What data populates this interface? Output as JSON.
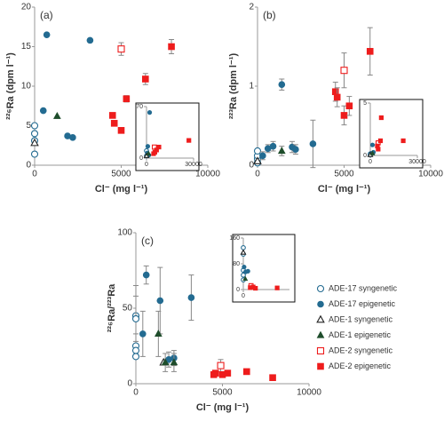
{
  "chart_data": [
    {
      "type": "scatter",
      "panel_label": "(a)",
      "x_label": "Cl⁻ (mg l⁻¹)",
      "y_label": "²²⁶Ra (dpm l⁻¹)",
      "xlim": [
        0,
        10000
      ],
      "xticks": [
        0,
        5000,
        10000
      ],
      "ylim": [
        0,
        20
      ],
      "yticks": [
        0,
        5,
        10,
        15,
        20
      ],
      "series": [
        {
          "marker": "circle-open",
          "color": "#236b91",
          "x": [
            0,
            0,
            0,
            0
          ],
          "values": [
            1.4,
            3.1,
            4.0,
            5.0
          ]
        },
        {
          "marker": "circle",
          "color": "#236b91",
          "x": [
            500,
            700,
            1900,
            2200,
            3200
          ],
          "values": [
            6.9,
            16.5,
            3.7,
            3.5,
            15.8
          ]
        },
        {
          "marker": "triangle-open",
          "color": "#222222",
          "x": [
            0
          ],
          "values": [
            2.8
          ]
        },
        {
          "marker": "triangle",
          "color": "#1e4d2b",
          "x": [
            1300
          ],
          "values": [
            6.2
          ]
        },
        {
          "marker": "square-open",
          "color": "#ee1c1c",
          "x": [
            5000
          ],
          "values": [
            14.7
          ],
          "errors": [
            0.8
          ]
        },
        {
          "marker": "square",
          "color": "#ee1c1c",
          "x": [
            4500,
            4600,
            5000,
            5300,
            6400,
            7900
          ],
          "values": [
            6.3,
            5.3,
            4.4,
            8.4,
            10.9,
            15.0
          ],
          "errors": [
            null,
            null,
            null,
            0.4,
            0.7,
            0.9
          ]
        }
      ]
    },
    {
      "type": "scatter",
      "inset": true,
      "xlim": [
        0,
        30000
      ],
      "xticks": [
        0,
        30000
      ],
      "ylim": [
        0,
        70
      ],
      "yticks": [
        0,
        70
      ],
      "series": [
        {
          "marker": "circle-open",
          "color": "#236b91",
          "x": [
            0,
            0
          ],
          "values": [
            3,
            10
          ]
        },
        {
          "marker": "circle",
          "color": "#236b91",
          "x": [
            500,
            800,
            1500,
            2000
          ],
          "values": [
            7,
            16,
            4,
            62
          ]
        },
        {
          "marker": "triangle-open",
          "color": "#222222",
          "x": [
            0
          ],
          "values": [
            3
          ]
        },
        {
          "marker": "triangle",
          "color": "#1e4d2b",
          "x": [
            1300
          ],
          "values": [
            6
          ]
        },
        {
          "marker": "square-open",
          "color": "#ee1c1c",
          "x": [
            5000
          ],
          "values": [
            15
          ]
        },
        {
          "marker": "square",
          "color": "#ee1c1c",
          "x": [
            4500,
            5300,
            6400,
            7900,
            27000
          ],
          "values": [
            6,
            8,
            11,
            15,
            24
          ]
        }
      ]
    },
    {
      "type": "scatter",
      "panel_label": "(b)",
      "x_label": "Cl⁻ (mg l⁻¹)",
      "y_label": "²²³Ra (dpm l⁻¹)",
      "xlim": [
        0,
        10000
      ],
      "xticks": [
        0,
        5000,
        10000
      ],
      "ylim": [
        0,
        2
      ],
      "yticks": [
        0,
        1,
        2
      ],
      "series": [
        {
          "marker": "circle-open",
          "color": "#236b91",
          "x": [
            0,
            0,
            0,
            0
          ],
          "values": [
            0.03,
            0.08,
            0.12,
            0.18
          ]
        },
        {
          "marker": "circle",
          "color": "#236b91",
          "x": [
            300,
            600,
            900,
            1400,
            2000,
            2200,
            3200
          ],
          "values": [
            0.12,
            0.21,
            0.24,
            1.02,
            0.23,
            0.2,
            0.27
          ],
          "errors": [
            0.05,
            0.05,
            0.06,
            0.07,
            0.07,
            0.06,
            0.3
          ]
        },
        {
          "marker": "triangle-open",
          "color": "#222222",
          "x": [
            0
          ],
          "values": [
            0.05
          ]
        },
        {
          "marker": "triangle",
          "color": "#1e4d2b",
          "x": [
            1400
          ],
          "values": [
            0.18
          ],
          "errors": [
            0.06
          ]
        },
        {
          "marker": "square-open",
          "color": "#ee1c1c",
          "x": [
            5000
          ],
          "values": [
            1.2
          ],
          "errors": [
            0.22
          ]
        },
        {
          "marker": "square",
          "color": "#ee1c1c",
          "x": [
            4500,
            4600,
            5000,
            5300,
            6500
          ],
          "values": [
            0.93,
            0.86,
            0.63,
            0.75,
            1.44
          ],
          "errors": [
            0.12,
            0.12,
            0.12,
            0.12,
            0.3
          ]
        }
      ]
    },
    {
      "type": "scatter",
      "inset": true,
      "xlim": [
        0,
        30000
      ],
      "xticks": [
        0,
        30000
      ],
      "ylim": [
        0,
        5
      ],
      "yticks": [
        0,
        5
      ],
      "series": [
        {
          "marker": "circle-open",
          "color": "#236b91",
          "x": [
            0,
            0
          ],
          "values": [
            0.05,
            0.15
          ]
        },
        {
          "marker": "circle",
          "color": "#236b91",
          "x": [
            500,
            1400,
            2000
          ],
          "values": [
            0.2,
            1.0,
            0.3
          ]
        },
        {
          "marker": "triangle-open",
          "color": "#222222",
          "x": [
            0
          ],
          "values": [
            0.05
          ]
        },
        {
          "marker": "triangle",
          "color": "#1e4d2b",
          "x": [
            1400
          ],
          "values": [
            0.2
          ]
        },
        {
          "marker": "square-open",
          "color": "#ee1c1c",
          "x": [
            5000
          ],
          "values": [
            1.2
          ]
        },
        {
          "marker": "square",
          "color": "#ee1c1c",
          "x": [
            4500,
            5000,
            6500,
            7000,
            21000
          ],
          "values": [
            0.9,
            0.6,
            1.4,
            3.6,
            1.4
          ]
        }
      ]
    },
    {
      "type": "scatter",
      "panel_label": "(c)",
      "x_label": "Cl⁻ (mg l⁻¹)",
      "y_label": "²²⁶Ra/²²³Ra",
      "xlim": [
        0,
        10000
      ],
      "xticks": [
        0,
        5000,
        10000
      ],
      "ylim": [
        0,
        100
      ],
      "yticks": [
        0,
        50,
        100
      ],
      "series": [
        {
          "name": "ADE-17 syngenetic",
          "marker": "circle-open",
          "color": "#236b91",
          "x": [
            0,
            0,
            0,
            0,
            0
          ],
          "values": [
            45,
            43,
            25,
            22,
            18
          ],
          "errors": [
            20,
            15,
            8,
            null,
            null
          ]
        },
        {
          "name": "ADE-17 epigenetic",
          "marker": "circle",
          "color": "#236b91",
          "x": [
            400,
            600,
            1400,
            1900,
            2200,
            3200
          ],
          "values": [
            33,
            72,
            55,
            16,
            17,
            57
          ],
          "errors": [
            15,
            6,
            22,
            5,
            5,
            15
          ]
        },
        {
          "name": "ADE-1 syngenetic",
          "marker": "triangle-open",
          "color": "#222222",
          "x": [
            1600
          ],
          "values": [
            14
          ]
        },
        {
          "name": "ADE-1 epigenetic",
          "marker": "triangle",
          "color": "#1e4d2b",
          "x": [
            1300,
            1700,
            2200
          ],
          "values": [
            33,
            14,
            14
          ],
          "errors": [
            15,
            6,
            6
          ]
        },
        {
          "name": "ADE-2 syngenetic",
          "marker": "square-open",
          "color": "#ee1c1c",
          "x": [
            4900
          ],
          "values": [
            12
          ],
          "errors": [
            4
          ]
        },
        {
          "name": "ADE-2 epigenetic",
          "marker": "square",
          "color": "#ee1c1c",
          "x": [
            4500,
            4600,
            5000,
            5300,
            6400,
            7900
          ],
          "values": [
            6,
            7,
            6,
            7,
            8,
            4
          ]
        }
      ]
    },
    {
      "type": "scatter",
      "inset": true,
      "xlim": [
        0,
        30000
      ],
      "xticks": [
        0
      ],
      "ylim": [
        0,
        160
      ],
      "yticks": [
        0,
        80,
        160
      ],
      "series": [
        {
          "marker": "circle-open",
          "color": "#236b91",
          "x": [
            0,
            0,
            0,
            0,
            0
          ],
          "values": [
            130,
            110,
            60,
            45,
            30
          ]
        },
        {
          "marker": "circle",
          "color": "#236b91",
          "x": [
            500,
            1500,
            3000
          ],
          "values": [
            70,
            55,
            57
          ]
        },
        {
          "marker": "triangle-open",
          "color": "#222222",
          "x": [
            0
          ],
          "values": [
            115
          ]
        },
        {
          "marker": "triangle",
          "color": "#1e4d2b",
          "x": [
            1300
          ],
          "values": [
            33
          ]
        },
        {
          "marker": "square-open",
          "color": "#ee1c1c",
          "x": [
            5000
          ],
          "values": [
            12
          ]
        },
        {
          "marker": "square",
          "color": "#ee1c1c",
          "x": [
            4500,
            6400,
            7900,
            22000
          ],
          "values": [
            6,
            8,
            4,
            5
          ]
        }
      ]
    }
  ]
}
